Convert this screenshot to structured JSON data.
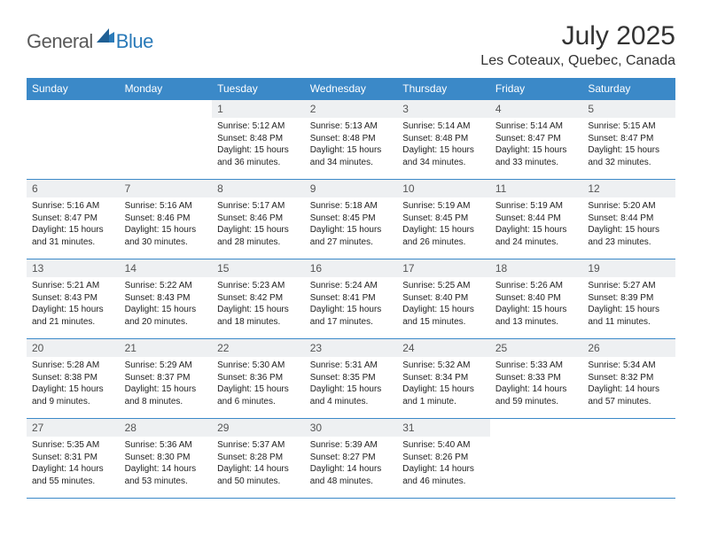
{
  "brand": {
    "part1": "General",
    "part2": "Blue"
  },
  "title": "July 2025",
  "location": "Les Coteaux, Quebec, Canada",
  "colors": {
    "header_bg": "#3b89c8",
    "header_text": "#ffffff",
    "daynum_bg": "#eef0f2",
    "border": "#3b89c8",
    "logo_gray": "#5a5a5a",
    "logo_blue": "#2a7ab8"
  },
  "weekdays": [
    "Sunday",
    "Monday",
    "Tuesday",
    "Wednesday",
    "Thursday",
    "Friday",
    "Saturday"
  ],
  "grid": [
    [
      null,
      null,
      {
        "n": "1",
        "sunrise": "Sunrise: 5:12 AM",
        "sunset": "Sunset: 8:48 PM",
        "daylight": "Daylight: 15 hours and 36 minutes."
      },
      {
        "n": "2",
        "sunrise": "Sunrise: 5:13 AM",
        "sunset": "Sunset: 8:48 PM",
        "daylight": "Daylight: 15 hours and 34 minutes."
      },
      {
        "n": "3",
        "sunrise": "Sunrise: 5:14 AM",
        "sunset": "Sunset: 8:48 PM",
        "daylight": "Daylight: 15 hours and 34 minutes."
      },
      {
        "n": "4",
        "sunrise": "Sunrise: 5:14 AM",
        "sunset": "Sunset: 8:47 PM",
        "daylight": "Daylight: 15 hours and 33 minutes."
      },
      {
        "n": "5",
        "sunrise": "Sunrise: 5:15 AM",
        "sunset": "Sunset: 8:47 PM",
        "daylight": "Daylight: 15 hours and 32 minutes."
      }
    ],
    [
      {
        "n": "6",
        "sunrise": "Sunrise: 5:16 AM",
        "sunset": "Sunset: 8:47 PM",
        "daylight": "Daylight: 15 hours and 31 minutes."
      },
      {
        "n": "7",
        "sunrise": "Sunrise: 5:16 AM",
        "sunset": "Sunset: 8:46 PM",
        "daylight": "Daylight: 15 hours and 30 minutes."
      },
      {
        "n": "8",
        "sunrise": "Sunrise: 5:17 AM",
        "sunset": "Sunset: 8:46 PM",
        "daylight": "Daylight: 15 hours and 28 minutes."
      },
      {
        "n": "9",
        "sunrise": "Sunrise: 5:18 AM",
        "sunset": "Sunset: 8:45 PM",
        "daylight": "Daylight: 15 hours and 27 minutes."
      },
      {
        "n": "10",
        "sunrise": "Sunrise: 5:19 AM",
        "sunset": "Sunset: 8:45 PM",
        "daylight": "Daylight: 15 hours and 26 minutes."
      },
      {
        "n": "11",
        "sunrise": "Sunrise: 5:19 AM",
        "sunset": "Sunset: 8:44 PM",
        "daylight": "Daylight: 15 hours and 24 minutes."
      },
      {
        "n": "12",
        "sunrise": "Sunrise: 5:20 AM",
        "sunset": "Sunset: 8:44 PM",
        "daylight": "Daylight: 15 hours and 23 minutes."
      }
    ],
    [
      {
        "n": "13",
        "sunrise": "Sunrise: 5:21 AM",
        "sunset": "Sunset: 8:43 PM",
        "daylight": "Daylight: 15 hours and 21 minutes."
      },
      {
        "n": "14",
        "sunrise": "Sunrise: 5:22 AM",
        "sunset": "Sunset: 8:43 PM",
        "daylight": "Daylight: 15 hours and 20 minutes."
      },
      {
        "n": "15",
        "sunrise": "Sunrise: 5:23 AM",
        "sunset": "Sunset: 8:42 PM",
        "daylight": "Daylight: 15 hours and 18 minutes."
      },
      {
        "n": "16",
        "sunrise": "Sunrise: 5:24 AM",
        "sunset": "Sunset: 8:41 PM",
        "daylight": "Daylight: 15 hours and 17 minutes."
      },
      {
        "n": "17",
        "sunrise": "Sunrise: 5:25 AM",
        "sunset": "Sunset: 8:40 PM",
        "daylight": "Daylight: 15 hours and 15 minutes."
      },
      {
        "n": "18",
        "sunrise": "Sunrise: 5:26 AM",
        "sunset": "Sunset: 8:40 PM",
        "daylight": "Daylight: 15 hours and 13 minutes."
      },
      {
        "n": "19",
        "sunrise": "Sunrise: 5:27 AM",
        "sunset": "Sunset: 8:39 PM",
        "daylight": "Daylight: 15 hours and 11 minutes."
      }
    ],
    [
      {
        "n": "20",
        "sunrise": "Sunrise: 5:28 AM",
        "sunset": "Sunset: 8:38 PM",
        "daylight": "Daylight: 15 hours and 9 minutes."
      },
      {
        "n": "21",
        "sunrise": "Sunrise: 5:29 AM",
        "sunset": "Sunset: 8:37 PM",
        "daylight": "Daylight: 15 hours and 8 minutes."
      },
      {
        "n": "22",
        "sunrise": "Sunrise: 5:30 AM",
        "sunset": "Sunset: 8:36 PM",
        "daylight": "Daylight: 15 hours and 6 minutes."
      },
      {
        "n": "23",
        "sunrise": "Sunrise: 5:31 AM",
        "sunset": "Sunset: 8:35 PM",
        "daylight": "Daylight: 15 hours and 4 minutes."
      },
      {
        "n": "24",
        "sunrise": "Sunrise: 5:32 AM",
        "sunset": "Sunset: 8:34 PM",
        "daylight": "Daylight: 15 hours and 1 minute."
      },
      {
        "n": "25",
        "sunrise": "Sunrise: 5:33 AM",
        "sunset": "Sunset: 8:33 PM",
        "daylight": "Daylight: 14 hours and 59 minutes."
      },
      {
        "n": "26",
        "sunrise": "Sunrise: 5:34 AM",
        "sunset": "Sunset: 8:32 PM",
        "daylight": "Daylight: 14 hours and 57 minutes."
      }
    ],
    [
      {
        "n": "27",
        "sunrise": "Sunrise: 5:35 AM",
        "sunset": "Sunset: 8:31 PM",
        "daylight": "Daylight: 14 hours and 55 minutes."
      },
      {
        "n": "28",
        "sunrise": "Sunrise: 5:36 AM",
        "sunset": "Sunset: 8:30 PM",
        "daylight": "Daylight: 14 hours and 53 minutes."
      },
      {
        "n": "29",
        "sunrise": "Sunrise: 5:37 AM",
        "sunset": "Sunset: 8:28 PM",
        "daylight": "Daylight: 14 hours and 50 minutes."
      },
      {
        "n": "30",
        "sunrise": "Sunrise: 5:39 AM",
        "sunset": "Sunset: 8:27 PM",
        "daylight": "Daylight: 14 hours and 48 minutes."
      },
      {
        "n": "31",
        "sunrise": "Sunrise: 5:40 AM",
        "sunset": "Sunset: 8:26 PM",
        "daylight": "Daylight: 14 hours and 46 minutes."
      },
      null,
      null
    ]
  ]
}
